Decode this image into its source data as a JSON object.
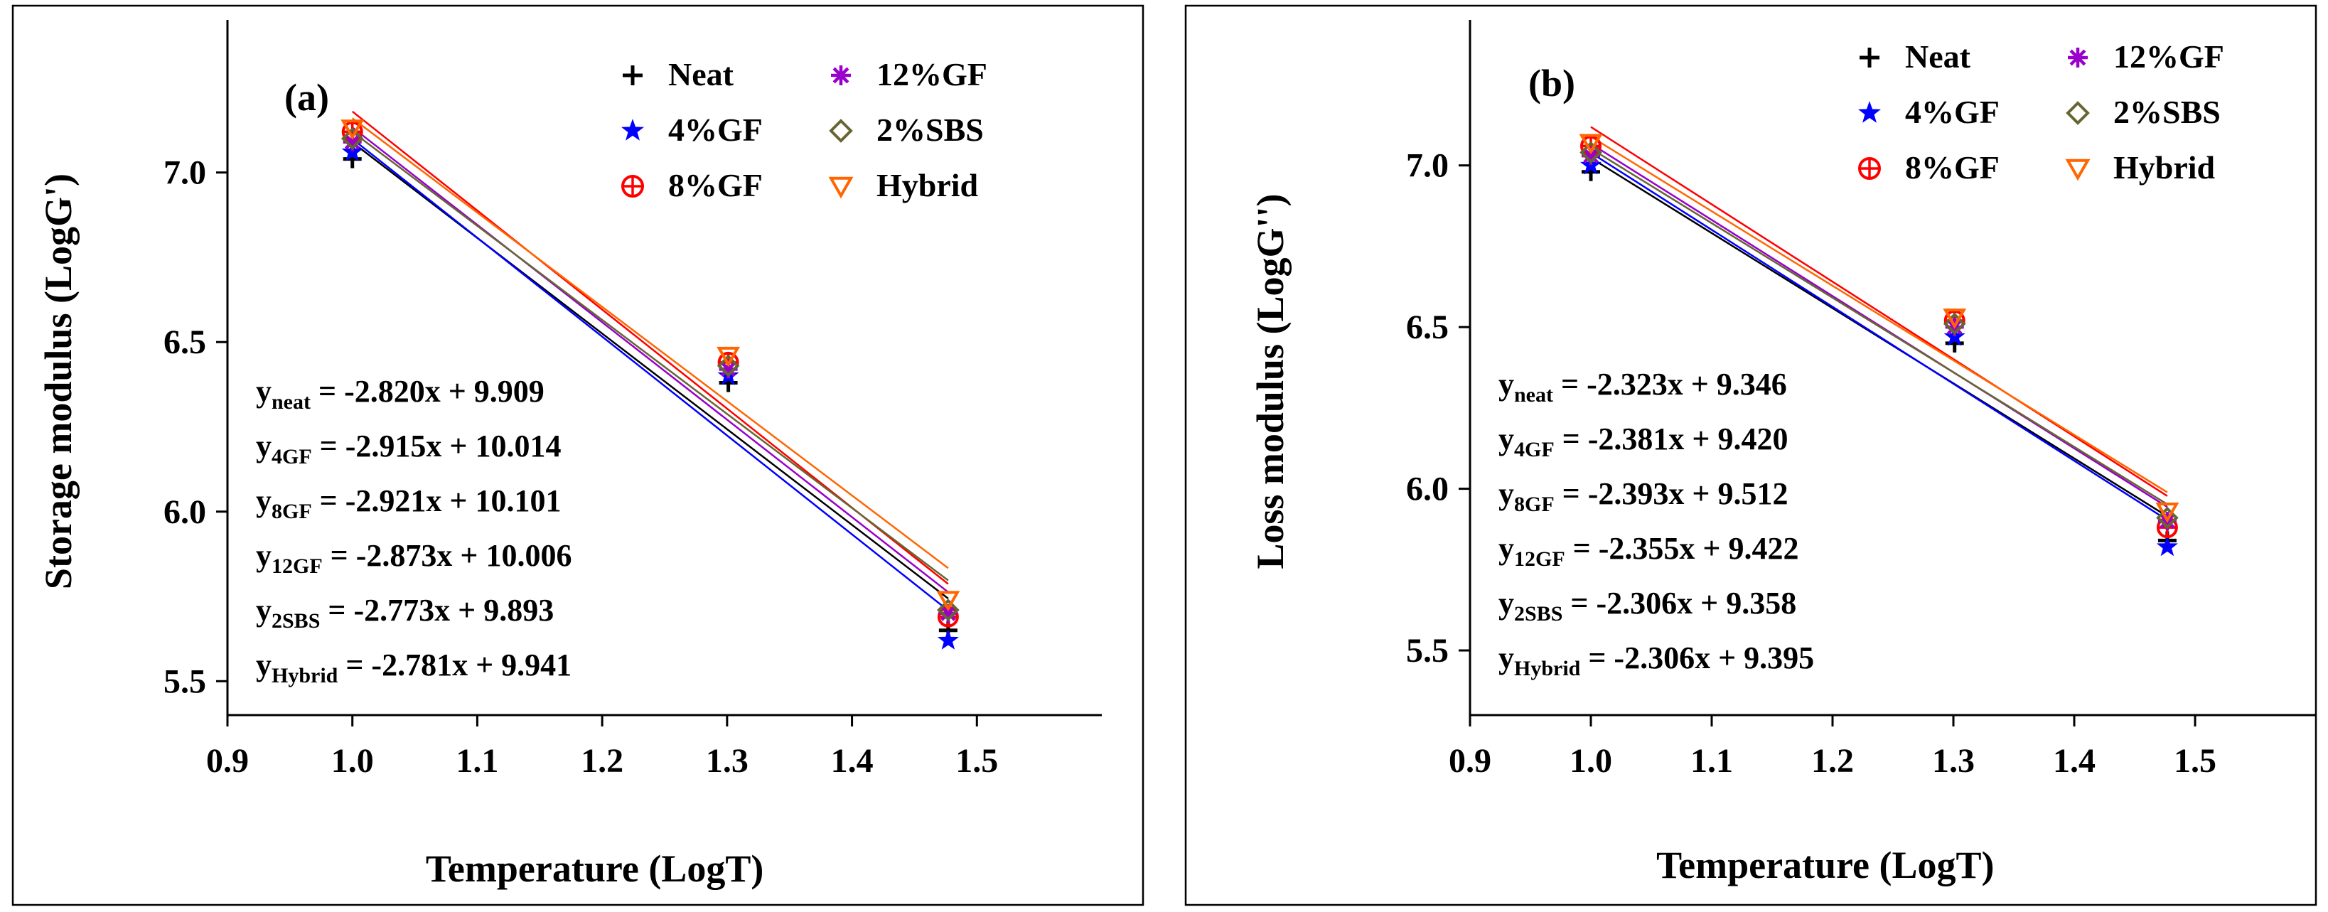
{
  "chart_data": [
    {
      "type": "scatter",
      "panel": "(a)",
      "title": "",
      "xlabel": "Temperature (LogT)",
      "ylabel": "Storage modulus (LogG')",
      "xlim": [
        0.9,
        1.6
      ],
      "ylim": [
        5.4,
        7.45
      ],
      "xticks": [
        "0.9",
        "1.0",
        "1.1",
        "1.2",
        "1.3",
        "1.4",
        "1.5"
      ],
      "yticks": [
        "5.5",
        "6.0",
        "6.5",
        "7.0"
      ],
      "legend_position": "top-right",
      "series": [
        {
          "name": "Neat",
          "marker": "plus",
          "color": "#000000",
          "x": [
            1.0,
            1.301,
            1.477
          ],
          "y": [
            7.04,
            6.38,
            5.65
          ],
          "fit": {
            "slope": -2.82,
            "intercept": 9.909
          }
        },
        {
          "name": "4%GF",
          "marker": "star",
          "color": "#0000FF",
          "x": [
            1.0,
            1.301,
            1.477
          ],
          "y": [
            7.06,
            6.4,
            5.62
          ],
          "fit": {
            "slope": -2.915,
            "intercept": 10.014
          }
        },
        {
          "name": "8%GF",
          "marker": "circplus",
          "color": "#FF0000",
          "x": [
            1.0,
            1.301,
            1.477
          ],
          "y": [
            7.12,
            6.44,
            5.69
          ],
          "fit": {
            "slope": -2.921,
            "intercept": 10.101
          }
        },
        {
          "name": "12%GF",
          "marker": "asterisk",
          "color": "#9900CC",
          "x": [
            1.0,
            1.301,
            1.477
          ],
          "y": [
            7.09,
            6.42,
            5.7
          ],
          "fit": {
            "slope": -2.873,
            "intercept": 10.006
          }
        },
        {
          "name": "2%SBS",
          "marker": "diamond",
          "color": "#666633",
          "x": [
            1.0,
            1.301,
            1.477
          ],
          "y": [
            7.1,
            6.43,
            5.71
          ],
          "fit": {
            "slope": -2.773,
            "intercept": 9.893
          }
        },
        {
          "name": "Hybrid",
          "marker": "tridown",
          "color": "#FF6600",
          "x": [
            1.0,
            1.301,
            1.477
          ],
          "y": [
            7.13,
            6.46,
            5.74
          ],
          "fit": {
            "slope": -2.781,
            "intercept": 9.941
          }
        }
      ],
      "equations": [
        {
          "sub": "neat",
          "rhs": " = -2.820x + 9.909"
        },
        {
          "sub": "4GF",
          "rhs": " = -2.915x + 10.014"
        },
        {
          "sub": "8GF",
          "rhs": " = -2.921x + 10.101"
        },
        {
          "sub": "12GF",
          "rhs": " = -2.873x + 10.006"
        },
        {
          "sub": "2SBS",
          "rhs": " = -2.773x + 9.893"
        },
        {
          "sub": "Hybrid",
          "rhs": " = -2.781x + 9.941"
        }
      ]
    },
    {
      "type": "scatter",
      "panel": "(b)",
      "title": "",
      "xlabel": "Temperature (LogT)",
      "ylabel": "Loss modulus (LogG'')",
      "xlim": [
        0.9,
        1.6
      ],
      "ylim": [
        5.3,
        7.45
      ],
      "xticks": [
        "0.9",
        "1.0",
        "1.1",
        "1.2",
        "1.3",
        "1.4",
        "1.5"
      ],
      "yticks": [
        "5.5",
        "6.0",
        "6.5",
        "7.0"
      ],
      "legend_position": "top-right",
      "series": [
        {
          "name": "Neat",
          "marker": "plus",
          "color": "#000000",
          "x": [
            1.0,
            1.301,
            1.477
          ],
          "y": [
            6.98,
            6.45,
            5.84
          ],
          "fit": {
            "slope": -2.323,
            "intercept": 9.346
          }
        },
        {
          "name": "4%GF",
          "marker": "star",
          "color": "#0000FF",
          "x": [
            1.0,
            1.301,
            1.477
          ],
          "y": [
            7.0,
            6.47,
            5.82
          ],
          "fit": {
            "slope": -2.381,
            "intercept": 9.42
          }
        },
        {
          "name": "8%GF",
          "marker": "circplus",
          "color": "#FF0000",
          "x": [
            1.0,
            1.301,
            1.477
          ],
          "y": [
            7.06,
            6.52,
            5.88
          ],
          "fit": {
            "slope": -2.393,
            "intercept": 9.512
          }
        },
        {
          "name": "12%GF",
          "marker": "asterisk",
          "color": "#9900CC",
          "x": [
            1.0,
            1.301,
            1.477
          ],
          "y": [
            7.03,
            6.5,
            5.9
          ],
          "fit": {
            "slope": -2.355,
            "intercept": 9.422
          }
        },
        {
          "name": "2%SBS",
          "marker": "diamond",
          "color": "#666633",
          "x": [
            1.0,
            1.301,
            1.477
          ],
          "y": [
            7.04,
            6.51,
            5.91
          ],
          "fit": {
            "slope": -2.306,
            "intercept": 9.358
          }
        },
        {
          "name": "Hybrid",
          "marker": "tridown",
          "color": "#FF6600",
          "x": [
            1.0,
            1.301,
            1.477
          ],
          "y": [
            7.07,
            6.53,
            5.93
          ],
          "fit": {
            "slope": -2.306,
            "intercept": 9.395
          }
        }
      ],
      "equations": [
        {
          "sub": "neat",
          "rhs": " = -2.323x + 9.346"
        },
        {
          "sub": "4GF",
          "rhs": " = -2.381x + 9.420"
        },
        {
          "sub": "8GF",
          "rhs": " = -2.393x + 9.512"
        },
        {
          "sub": "12GF",
          "rhs": " = -2.355x + 9.422"
        },
        {
          "sub": "2SBS",
          "rhs": " = -2.306x + 9.358"
        },
        {
          "sub": "Hybrid",
          "rhs": " = -2.306x + 9.395"
        }
      ]
    }
  ]
}
